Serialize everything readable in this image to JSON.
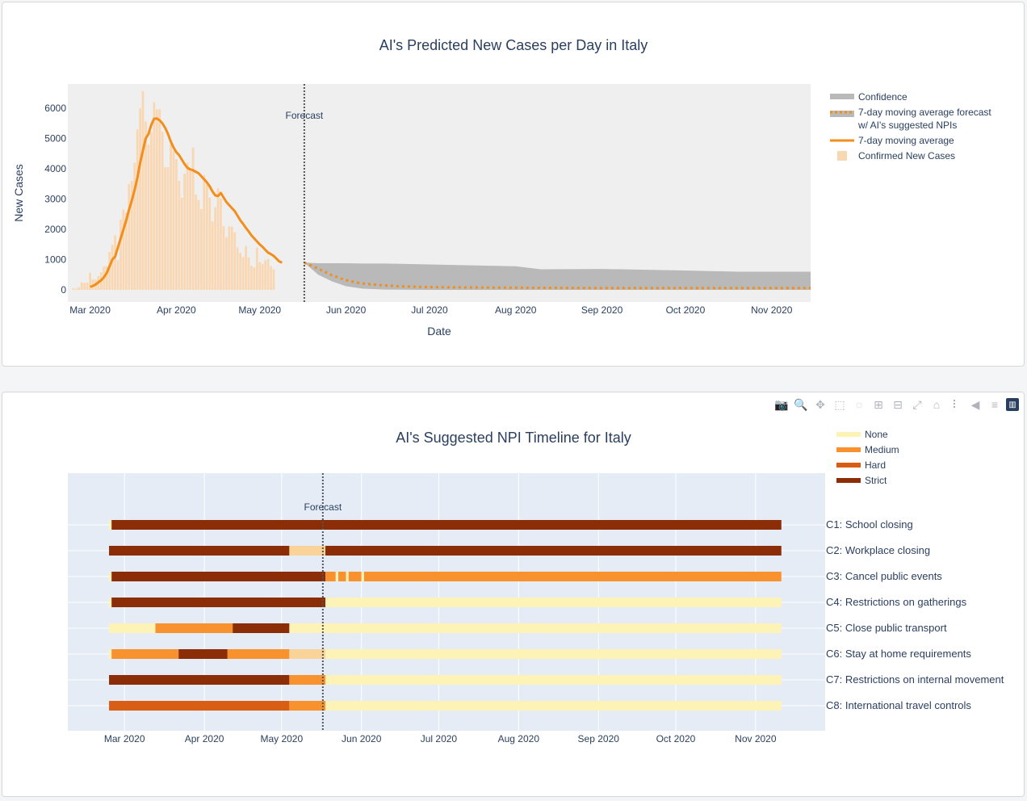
{
  "chart_data": [
    {
      "type": "bar",
      "title": "AI's Predicted New Cases per Day in Italy",
      "xlabel": "Date",
      "ylabel": "New Cases",
      "x_range": [
        "2020-02-22",
        "2020-11-15"
      ],
      "ylim": [
        -400,
        6800
      ],
      "x_tick_labels": [
        "Mar 2020",
        "Apr 2020",
        "May 2020",
        "Jun 2020",
        "Jul 2020",
        "Aug 2020",
        "Sep 2020",
        "Oct 2020",
        "Nov 2020"
      ],
      "x_tick_dates": [
        "2020-03-01",
        "2020-04-01",
        "2020-05-01",
        "2020-06-01",
        "2020-07-01",
        "2020-08-01",
        "2020-09-01",
        "2020-10-01",
        "2020-11-01"
      ],
      "y_ticks": [
        0,
        1000,
        2000,
        3000,
        4000,
        5000,
        6000
      ],
      "y_tick_labels": [
        "0",
        "1000",
        "2000",
        "3000",
        "4000",
        "5000",
        "6000"
      ],
      "grid": false,
      "legend_position": "right",
      "forecast_date": "2020-05-17",
      "forecast_label": "Forecast",
      "colors": {
        "bars": "#fad7b3",
        "line": "#f28e1b",
        "forecast": "#f28e1b",
        "confidence": "#b9b9b9",
        "plot_bg": "#efefef"
      },
      "legend": [
        {
          "label": "Confidence",
          "kind": "band",
          "color": "#b9b9b9"
        },
        {
          "label": "7-day moving average forecast",
          "label2": "w/ AI's suggested NPIs",
          "kind": "dotted",
          "color": "#f28e1b"
        },
        {
          "label": "7-day moving average",
          "kind": "line",
          "color": "#f28e1b"
        },
        {
          "label": "Confirmed New Cases",
          "kind": "square",
          "color": "#fad7b3"
        }
      ],
      "confirmed_new_cases": {
        "start_date": "2020-02-24",
        "values": [
          50,
          40,
          90,
          250,
          230,
          240,
          560,
          350,
          340,
          460,
          580,
          780,
          780,
          1250,
          1490,
          1800,
          980,
          2320,
          2650,
          2550,
          3500,
          3600,
          4200,
          5300,
          5990,
          6560,
          5560,
          4790,
          5210,
          6200,
          5960,
          5970,
          5220,
          4050,
          4050,
          4800,
          4590,
          4320,
          3600,
          3040,
          3840,
          4200,
          3950,
          4700,
          3150,
          2970,
          2670,
          3790,
          3490,
          3050,
          2260,
          2730,
          3360,
          3020,
          2100,
          1740,
          2090,
          2090,
          1900,
          1400,
          1220,
          1080,
          1450,
          1070,
          800,
          740,
          1400,
          920,
          850,
          980,
          1020,
          780,
          680
        ]
      },
      "moving_average": {
        "start_date": "2020-03-01",
        "values": [
          100,
          130,
          180,
          250,
          320,
          420,
          560,
          780,
          1000,
          1100,
          1400,
          1700,
          2000,
          2300,
          2650,
          2950,
          3300,
          3700,
          4200,
          4600,
          5000,
          5150,
          5450,
          5650,
          5660,
          5600,
          5500,
          5350,
          5150,
          4900,
          4700,
          4550,
          4450,
          4300,
          4150,
          4030,
          3980,
          3950,
          3900,
          3850,
          3750,
          3650,
          3550,
          3420,
          3250,
          3120,
          3100,
          3200,
          3050,
          2900,
          2800,
          2700,
          2600,
          2450,
          2300,
          2180,
          2050,
          1930,
          1800,
          1700,
          1600,
          1500,
          1420,
          1320,
          1230,
          1180,
          1120,
          1030,
          940,
          900
        ]
      },
      "forecast_series": {
        "dates": [
          "2020-05-17",
          "2020-05-22",
          "2020-05-27",
          "2020-06-01",
          "2020-06-06",
          "2020-06-13",
          "2020-06-20",
          "2020-07-01",
          "2020-07-15",
          "2020-08-01",
          "2020-09-01",
          "2020-10-01",
          "2020-11-15"
        ],
        "values": [
          900,
          700,
          480,
          320,
          220,
          160,
          120,
          90,
          80,
          70,
          60,
          60,
          60
        ]
      },
      "confidence_band": {
        "dates": [
          "2020-05-17",
          "2020-05-22",
          "2020-05-27",
          "2020-06-01",
          "2020-06-07",
          "2020-06-15",
          "2020-07-01",
          "2020-08-01",
          "2020-08-10",
          "2020-09-01",
          "2020-10-01",
          "2020-10-20",
          "2020-11-15"
        ],
        "upper": [
          900,
          880,
          880,
          880,
          870,
          870,
          840,
          780,
          680,
          690,
          640,
          600,
          600
        ],
        "lower": [
          900,
          500,
          280,
          120,
          40,
          10,
          0,
          0,
          0,
          0,
          0,
          0,
          0
        ]
      }
    },
    {
      "type": "timeline",
      "title": "AI's Suggested NPI Timeline for Italy",
      "x_range": [
        "2020-02-08",
        "2020-11-28"
      ],
      "x_tick_labels": [
        "Mar 2020",
        "Apr 2020",
        "May 2020",
        "Jun 2020",
        "Jul 2020",
        "Aug 2020",
        "Sep 2020",
        "Oct 2020",
        "Nov 2020"
      ],
      "x_tick_dates": [
        "2020-03-01",
        "2020-04-01",
        "2020-05-01",
        "2020-06-01",
        "2020-07-01",
        "2020-08-01",
        "2020-09-01",
        "2020-10-01",
        "2020-11-01"
      ],
      "grid": true,
      "legend_position": "top-right",
      "forecast_date": "2020-05-17",
      "forecast_label": "Forecast",
      "colors": {
        "plot_bg": "#e5ecf6",
        "faded": "#f9d398"
      },
      "levels": [
        {
          "label": "None",
          "color": "#fef3b6"
        },
        {
          "label": "Medium",
          "color": "#f8922e"
        },
        {
          "label": "Hard",
          "color": "#d95e15"
        },
        {
          "label": "Strict",
          "color": "#8b2d06"
        }
      ],
      "rows": [
        {
          "label": "C1: School closing",
          "segments": [
            [
              "2020-02-24",
              "2020-02-25",
              "None"
            ],
            [
              "2020-02-25",
              "2020-11-11",
              "Strict"
            ]
          ]
        },
        {
          "label": "C2: Workplace closing",
          "segments": [
            [
              "2020-02-24",
              "2020-05-04",
              "Strict"
            ],
            [
              "2020-05-04",
              "2020-05-18",
              "faded"
            ],
            [
              "2020-05-18",
              "2020-11-11",
              "Strict"
            ]
          ]
        },
        {
          "label": "C3: Cancel public events",
          "segments": [
            [
              "2020-02-24",
              "2020-02-25",
              "None"
            ],
            [
              "2020-02-25",
              "2020-05-18",
              "Strict"
            ],
            [
              "2020-05-18",
              "2020-05-22",
              "Medium"
            ],
            [
              "2020-05-22",
              "2020-05-23",
              "None"
            ],
            [
              "2020-05-23",
              "2020-05-26",
              "Medium"
            ],
            [
              "2020-05-26",
              "2020-05-27",
              "None"
            ],
            [
              "2020-05-27",
              "2020-06-01",
              "Medium"
            ],
            [
              "2020-06-01",
              "2020-06-02",
              "None"
            ],
            [
              "2020-06-02",
              "2020-11-11",
              "Medium"
            ]
          ]
        },
        {
          "label": "C4: Restrictions on gatherings",
          "segments": [
            [
              "2020-02-24",
              "2020-02-25",
              "None"
            ],
            [
              "2020-02-25",
              "2020-05-18",
              "Strict"
            ],
            [
              "2020-05-18",
              "2020-11-11",
              "None"
            ]
          ]
        },
        {
          "label": "C5: Close public transport",
          "segments": [
            [
              "2020-02-24",
              "2020-03-13",
              "None"
            ],
            [
              "2020-03-13",
              "2020-04-12",
              "Medium"
            ],
            [
              "2020-04-12",
              "2020-05-04",
              "Strict"
            ],
            [
              "2020-05-04",
              "2020-11-11",
              "None"
            ]
          ]
        },
        {
          "label": "C6: Stay at home requirements",
          "segments": [
            [
              "2020-02-24",
              "2020-02-25",
              "None"
            ],
            [
              "2020-02-25",
              "2020-03-22",
              "Medium"
            ],
            [
              "2020-03-22",
              "2020-04-10",
              "Strict"
            ],
            [
              "2020-04-10",
              "2020-05-04",
              "Medium"
            ],
            [
              "2020-05-04",
              "2020-05-18",
              "faded"
            ],
            [
              "2020-05-18",
              "2020-11-11",
              "None"
            ]
          ]
        },
        {
          "label": "C7: Restrictions on internal movement",
          "segments": [
            [
              "2020-02-24",
              "2020-05-04",
              "Strict"
            ],
            [
              "2020-05-04",
              "2020-05-18",
              "Medium"
            ],
            [
              "2020-05-18",
              "2020-11-11",
              "None"
            ]
          ]
        },
        {
          "label": "C8: International travel controls",
          "segments": [
            [
              "2020-02-24",
              "2020-05-04",
              "Hard"
            ],
            [
              "2020-05-04",
              "2020-05-18",
              "Medium"
            ],
            [
              "2020-05-18",
              "2020-11-11",
              "None"
            ]
          ]
        }
      ]
    }
  ],
  "modebar": [
    {
      "name": "camera-icon",
      "glyph": "📷"
    },
    {
      "name": "zoom-icon",
      "glyph": "🔍"
    },
    {
      "name": "pan-icon",
      "glyph": "✥"
    },
    {
      "name": "box-select-icon",
      "glyph": "⬚"
    },
    {
      "name": "lasso-select-icon",
      "glyph": "◌"
    },
    {
      "name": "zoom-in-icon",
      "glyph": "⊞"
    },
    {
      "name": "zoom-out-icon",
      "glyph": "⊟"
    },
    {
      "name": "autoscale-icon",
      "glyph": "⤢"
    },
    {
      "name": "home-icon",
      "glyph": "⌂"
    },
    {
      "name": "spike-lines-icon",
      "glyph": "⠇"
    },
    {
      "name": "hover-closest-icon",
      "glyph": "◀"
    },
    {
      "name": "hover-compare-icon",
      "glyph": "≡"
    },
    {
      "name": "plotly-logo-icon",
      "glyph": "▥"
    }
  ]
}
